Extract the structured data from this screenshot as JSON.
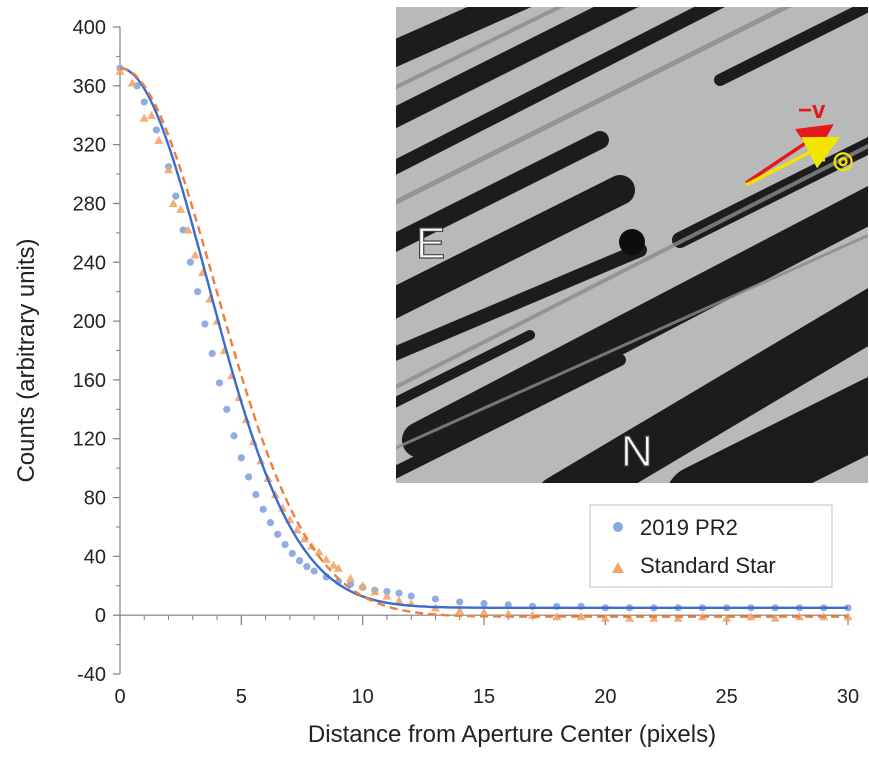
{
  "chart_data": {
    "type": "scatter",
    "title": "",
    "xlabel": "Distance from Aperture Center (pixels)",
    "ylabel": "Counts (arbitrary units)",
    "xlim": [
      0,
      30
    ],
    "ylim": [
      -40,
      400
    ],
    "x_major_ticks": [
      0,
      5,
      10,
      15,
      20,
      25,
      30
    ],
    "x_tick_labels": [
      "0",
      "5",
      "10",
      "15",
      "20",
      "25",
      "30"
    ],
    "y_major_ticks": [
      -40,
      0,
      40,
      80,
      120,
      160,
      200,
      240,
      280,
      320,
      360,
      400
    ],
    "y_tick_labels": [
      "-40",
      "0",
      "40",
      "80",
      "120",
      "160",
      "200",
      "240",
      "280",
      "320",
      "360",
      "400"
    ],
    "grid": false,
    "legend_position": "bottom-right",
    "series": [
      {
        "name": "2019 PR2",
        "marker": "circle",
        "color": "#8aa8e0",
        "points": [
          [
            0.0,
            372
          ],
          [
            0.7,
            360
          ],
          [
            1.0,
            349
          ],
          [
            1.5,
            330
          ],
          [
            2.0,
            305
          ],
          [
            2.3,
            285
          ],
          [
            2.6,
            262
          ],
          [
            2.9,
            240
          ],
          [
            3.2,
            220
          ],
          [
            3.5,
            198
          ],
          [
            3.8,
            178
          ],
          [
            4.1,
            158
          ],
          [
            4.4,
            140
          ],
          [
            4.7,
            122
          ],
          [
            5.0,
            107
          ],
          [
            5.3,
            94
          ],
          [
            5.6,
            82
          ],
          [
            5.9,
            72
          ],
          [
            6.2,
            63
          ],
          [
            6.5,
            55
          ],
          [
            6.8,
            48
          ],
          [
            7.1,
            42
          ],
          [
            7.4,
            37
          ],
          [
            7.7,
            33
          ],
          [
            8.0,
            30
          ],
          [
            8.5,
            26
          ],
          [
            9.0,
            23
          ],
          [
            9.5,
            21
          ],
          [
            10.0,
            19
          ],
          [
            10.5,
            17
          ],
          [
            11.0,
            16
          ],
          [
            11.5,
            15
          ],
          [
            12.0,
            13
          ],
          [
            13.0,
            11
          ],
          [
            14.0,
            9
          ],
          [
            15.0,
            8
          ],
          [
            16.0,
            7
          ],
          [
            17.0,
            6
          ],
          [
            18.0,
            6
          ],
          [
            19.0,
            6
          ],
          [
            20.0,
            5
          ],
          [
            21.0,
            5
          ],
          [
            22.0,
            5
          ],
          [
            23.0,
            5
          ],
          [
            24.0,
            5
          ],
          [
            25.0,
            5
          ],
          [
            26.0,
            5
          ],
          [
            27.0,
            5
          ],
          [
            28.0,
            5
          ],
          [
            29.0,
            5
          ],
          [
            30.0,
            5
          ]
        ]
      },
      {
        "name": "Standard Star",
        "marker": "triangle",
        "color": "#f4a46a",
        "points": [
          [
            0.0,
            370
          ],
          [
            0.5,
            362
          ],
          [
            1.0,
            338
          ],
          [
            1.3,
            340
          ],
          [
            1.6,
            323
          ],
          [
            2.0,
            303
          ],
          [
            2.2,
            280
          ],
          [
            2.5,
            276
          ],
          [
            2.8,
            262
          ],
          [
            3.1,
            245
          ],
          [
            3.4,
            233
          ],
          [
            3.7,
            215
          ],
          [
            4.0,
            200
          ],
          [
            4.3,
            180
          ],
          [
            4.6,
            163
          ],
          [
            4.9,
            148
          ],
          [
            5.2,
            133
          ],
          [
            5.5,
            118
          ],
          [
            5.8,
            105
          ],
          [
            6.1,
            93
          ],
          [
            6.4,
            82
          ],
          [
            6.7,
            73
          ],
          [
            7.0,
            65
          ],
          [
            7.3,
            58
          ],
          [
            7.6,
            52
          ],
          [
            7.9,
            47
          ],
          [
            8.2,
            43
          ],
          [
            8.5,
            38
          ],
          [
            8.8,
            34
          ],
          [
            9.0,
            32
          ],
          [
            9.5,
            25
          ],
          [
            10.0,
            20
          ],
          [
            10.5,
            16
          ],
          [
            11.0,
            13
          ],
          [
            11.5,
            10
          ],
          [
            12.0,
            8
          ],
          [
            13.0,
            5
          ],
          [
            14.0,
            3
          ],
          [
            15.0,
            2
          ],
          [
            16.0,
            1
          ],
          [
            17.0,
            0
          ],
          [
            18.0,
            -1
          ],
          [
            19.0,
            -1
          ],
          [
            20.0,
            -2
          ],
          [
            21.0,
            -2
          ],
          [
            22.0,
            -2
          ],
          [
            23.0,
            -2
          ],
          [
            24.0,
            -1
          ],
          [
            25.0,
            -2
          ],
          [
            26.0,
            -1
          ],
          [
            27.0,
            -2
          ],
          [
            28.0,
            -1
          ],
          [
            29.0,
            -1
          ],
          [
            30.0,
            -1
          ]
        ]
      }
    ],
    "fits": [
      {
        "of_series": "2019 PR2",
        "style": "solid",
        "color": "#3a6bd0",
        "model": "gaussian_plus_constant",
        "amplitude": 367,
        "sigma": 3.6,
        "offset": 5
      },
      {
        "of_series": "Standard Star",
        "style": "dashed",
        "color": "#f07d3a",
        "model": "gaussian_plus_constant",
        "amplitude": 373,
        "sigma": 3.9,
        "offset": -1
      }
    ],
    "inset": {
      "content": "grayscale telescope image with diagonal star trails and a central point source",
      "labels": {
        "east": "E",
        "north": "N",
        "minus_v": "−v",
        "minus_sun": "− ◎"
      },
      "colors": {
        "minus_v_arrow": "#e31a1c",
        "minus_sun_arrow": "#f2e600"
      }
    }
  }
}
